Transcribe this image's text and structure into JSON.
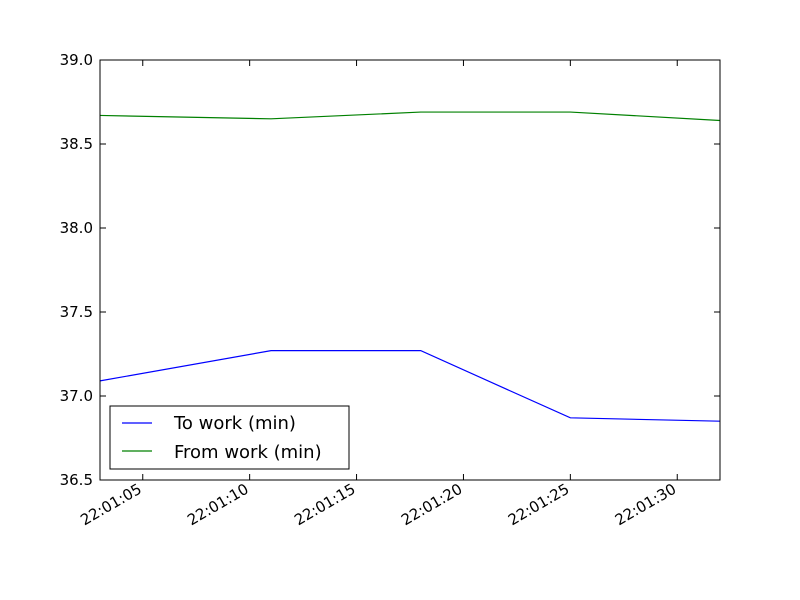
{
  "chart_data": {
    "type": "line",
    "title": "",
    "xlabel": "",
    "ylabel": "",
    "x": [
      "22:01:03",
      "22:01:11",
      "22:01:18",
      "22:01:25",
      "22:01:32"
    ],
    "x_range": [
      "22:01:03",
      "22:01:32"
    ],
    "xticks": [
      "22:01:05",
      "22:01:10",
      "22:01:15",
      "22:01:20",
      "22:01:25",
      "22:01:30"
    ],
    "ylim": [
      36.5,
      39.0
    ],
    "yticks": [
      "36.5",
      "37.0",
      "37.5",
      "38.0",
      "38.5",
      "39.0"
    ],
    "grid": false,
    "legend_position": "lower-left",
    "series": [
      {
        "name": "To work (min)",
        "color": "#0000ff",
        "values": [
          37.09,
          37.27,
          37.27,
          36.87,
          36.85
        ]
      },
      {
        "name": "From work (min)",
        "color": "#008000",
        "values": [
          38.67,
          38.65,
          38.69,
          38.69,
          38.64
        ]
      }
    ]
  }
}
